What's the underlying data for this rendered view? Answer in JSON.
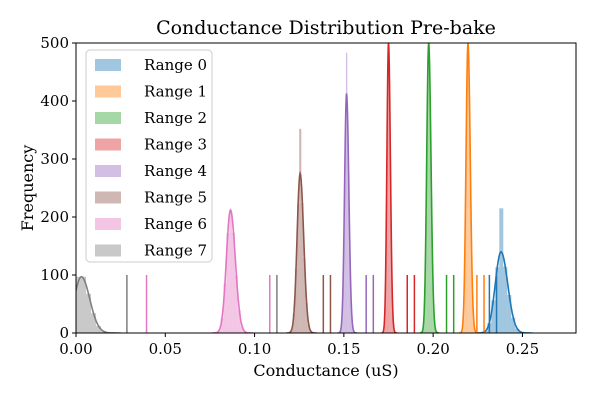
{
  "chart_data": {
    "type": "histogram",
    "title": "Conductance Distribution Pre-bake",
    "xlabel": "Conductance (uS)",
    "ylabel": "Frequency",
    "xlim": [
      0.0,
      0.28
    ],
    "ylim": [
      0,
      500
    ],
    "xticks": [
      0.0,
      0.05,
      0.1,
      0.15,
      0.2,
      0.25
    ],
    "xtick_labels": [
      "0.00",
      "0.05",
      "0.10",
      "0.15",
      "0.20",
      "0.25"
    ],
    "yticks": [
      0,
      100,
      200,
      300,
      400,
      500
    ],
    "ytick_labels": [
      "0",
      "100",
      "200",
      "300",
      "400",
      "500"
    ],
    "grid": false,
    "legend_position": "top-left",
    "threshold_line_height": 100,
    "series": [
      {
        "name": "Range 0",
        "color": "#1f77b4",
        "center": 0.238,
        "peak_frequency": 140,
        "histogram_peak": 215,
        "spread": 0.0032,
        "thresholds": [
          0.2315,
          0.2355
        ]
      },
      {
        "name": "Range 1",
        "color": "#ff7f0e",
        "center": 0.2195,
        "peak_frequency": 500,
        "histogram_peak": 500,
        "spread": 0.0011,
        "thresholds": [
          0.2245,
          0.2285
        ]
      },
      {
        "name": "Range 2",
        "color": "#2ca02c",
        "center": 0.1975,
        "peak_frequency": 500,
        "histogram_peak": 500,
        "spread": 0.0011,
        "thresholds": [
          0.2075,
          0.2115
        ]
      },
      {
        "name": "Range 3",
        "color": "#d62728",
        "center": 0.175,
        "peak_frequency": 500,
        "histogram_peak": 500,
        "spread": 0.0009,
        "thresholds": [
          0.1855,
          0.1895
        ]
      },
      {
        "name": "Range 4",
        "color": "#9467bd",
        "center": 0.1515,
        "peak_frequency": 413,
        "histogram_peak": 483,
        "spread": 0.0011,
        "thresholds": [
          0.1625,
          0.1665
        ]
      },
      {
        "name": "Range 5",
        "color": "#8c564b",
        "center": 0.1255,
        "peak_frequency": 275,
        "histogram_peak": 352,
        "spread": 0.0017,
        "thresholds": [
          0.1385,
          0.1425
        ]
      },
      {
        "name": "Range 6",
        "color": "#e377c2",
        "center": 0.0865,
        "peak_frequency": 212,
        "histogram_peak": 212,
        "spread": 0.0023,
        "thresholds": [
          0.0395,
          0.1085
        ]
      },
      {
        "name": "Range 7",
        "color": "#7f7f7f",
        "center": 0.003,
        "peak_frequency": 97,
        "histogram_peak": 97,
        "spread": 0.004,
        "thresholds": [
          0.0285,
          0.1125
        ]
      }
    ]
  }
}
